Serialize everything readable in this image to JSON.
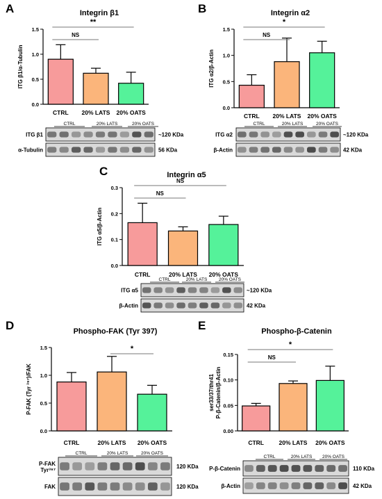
{
  "colors": {
    "ctrl": "#f79b9b",
    "lats": "#fbb57b",
    "oats": "#55f29a",
    "frame": "#000000",
    "blot_bg": "#d9d9d9",
    "blot_band": "#3a3a3a"
  },
  "charts": [
    {
      "panel_letter": "A",
      "title": "Integrin β1",
      "ylabel": "ITG β1/α-Tubulin",
      "yticks": [
        "0.0",
        "0.5",
        "1.0",
        "1.5"
      ],
      "ylim": [
        0,
        1.5
      ],
      "categories": [
        "CTRL",
        "20% LATS",
        "20% OATS"
      ],
      "values": [
        0.9,
        0.62,
        0.42
      ],
      "errors": [
        0.29,
        0.1,
        0.22
      ],
      "sig": [
        {
          "text": "NS",
          "from": 0,
          "to": 1
        },
        {
          "text": "**",
          "from": 0,
          "to": 2
        }
      ],
      "blot": {
        "groups": [
          "CTRL",
          "20% LATS",
          "20% OATS"
        ],
        "rows": [
          {
            "label": "ITG β1",
            "weight": "~120 KDa"
          },
          {
            "label": "α-Tubulin",
            "weight": "56 KDa"
          }
        ]
      }
    },
    {
      "panel_letter": "B",
      "title": "Integrin α2",
      "ylabel": "ITG α2/β-Actin",
      "yticks": [
        "0.0",
        "0.5",
        "1.0",
        "1.5"
      ],
      "ylim": [
        0,
        1.5
      ],
      "categories": [
        "CTRL",
        "20% LATS",
        "20% OATS"
      ],
      "values": [
        0.43,
        0.88,
        1.05
      ],
      "errors": [
        0.2,
        0.45,
        0.22
      ],
      "sig": [
        {
          "text": "NS",
          "from": 0,
          "to": 1
        },
        {
          "text": "*",
          "from": 0,
          "to": 2
        }
      ],
      "blot": {
        "groups": [
          "CTRL",
          "20% LATS",
          "20% OATS"
        ],
        "rows": [
          {
            "label": "ITG α2",
            "weight": "~120 KDa"
          },
          {
            "label": "β-Actin",
            "weight": "42 KDa"
          }
        ]
      }
    },
    {
      "panel_letter": "C",
      "title": "Integrin α5",
      "ylabel": "ITG α5/β-Actin",
      "yticks": [
        "0.0",
        "0.1",
        "0.2",
        "0.3"
      ],
      "ylim": [
        0,
        0.3
      ],
      "categories": [
        "CTRL",
        "20% LATS",
        "20% OATS"
      ],
      "values": [
        0.165,
        0.133,
        0.158
      ],
      "errors": [
        0.075,
        0.016,
        0.032
      ],
      "sig": [
        {
          "text": "NS",
          "from": 0,
          "to": 1
        },
        {
          "text": "NS",
          "from": 0,
          "to": 2
        }
      ],
      "blot": {
        "groups": [
          "CTRL",
          "20% LATS",
          "20% OATS"
        ],
        "rows": [
          {
            "label": "ITG α5",
            "weight": "~120 KDa"
          },
          {
            "label": "β-Actin",
            "weight": "42 KDa"
          }
        ]
      }
    },
    {
      "panel_letter": "D",
      "title": "Phospho-FAK (Tyr 397)",
      "ylabel": "P-FAK (Tyr ³⁹⁷)/FAK",
      "yticks": [
        "0.0",
        "0.5",
        "1.0",
        "1.5"
      ],
      "ylim": [
        0,
        1.5
      ],
      "categories": [
        "CTRL",
        "20% LATS",
        "20% OATS"
      ],
      "values": [
        0.88,
        1.06,
        0.66
      ],
      "errors": [
        0.17,
        0.28,
        0.16
      ],
      "sig": [
        {
          "text": "*",
          "from": 1,
          "to": 2
        }
      ],
      "blot": {
        "groups": [
          "CTRL",
          "20% LATS",
          "20% OATS"
        ],
        "rows": [
          {
            "label": "P-FAK Tyr³⁹⁷",
            "weight": "120 KDa"
          },
          {
            "label": "FAK",
            "weight": "120 KDa"
          }
        ]
      }
    },
    {
      "panel_letter": "E",
      "title": "Phospho-β-Catenin",
      "ylabel": "ser33/37/thr41 P-β-Catenin/β-Actin",
      "yticks": [
        "0.00",
        "0.05",
        "0.10",
        "0.15"
      ],
      "ylim": [
        0,
        0.15
      ],
      "categories": [
        "CTRL",
        "20% LATS",
        "20% OATS"
      ],
      "values": [
        0.049,
        0.093,
        0.099
      ],
      "errors": [
        0.005,
        0.005,
        0.028
      ],
      "sig": [
        {
          "text": "NS",
          "from": 0,
          "to": 1
        },
        {
          "text": "*",
          "from": 0,
          "to": 2
        }
      ],
      "blot": {
        "groups": [
          "CTRL",
          "20% LATS",
          "20% OATS"
        ],
        "rows": [
          {
            "label": "P-β-Catenin",
            "weight": "110 KDa"
          },
          {
            "label": "β-Actin",
            "weight": "42 KDa"
          }
        ]
      }
    }
  ],
  "chart_data": [
    {
      "type": "bar",
      "title": "Integrin β1",
      "ylabel": "ITG β1/α-Tubulin",
      "categories": [
        "CTRL",
        "20% LATS",
        "20% OATS"
      ],
      "values": [
        0.9,
        0.62,
        0.42
      ],
      "errors": [
        0.29,
        0.1,
        0.22
      ],
      "ylim": [
        0,
        1.5
      ]
    },
    {
      "type": "bar",
      "title": "Integrin α2",
      "ylabel": "ITG α2/β-Actin",
      "categories": [
        "CTRL",
        "20% LATS",
        "20% OATS"
      ],
      "values": [
        0.43,
        0.88,
        1.05
      ],
      "errors": [
        0.2,
        0.45,
        0.22
      ],
      "ylim": [
        0,
        1.5
      ]
    },
    {
      "type": "bar",
      "title": "Integrin α5",
      "ylabel": "ITG α5/β-Actin",
      "categories": [
        "CTRL",
        "20% LATS",
        "20% OATS"
      ],
      "values": [
        0.165,
        0.133,
        0.158
      ],
      "errors": [
        0.075,
        0.016,
        0.032
      ],
      "ylim": [
        0,
        0.3
      ]
    },
    {
      "type": "bar",
      "title": "Phospho-FAK (Tyr 397)",
      "ylabel": "P-FAK (Tyr ³⁹⁷)/FAK",
      "categories": [
        "CTRL",
        "20% LATS",
        "20% OATS"
      ],
      "values": [
        0.88,
        1.06,
        0.66
      ],
      "errors": [
        0.17,
        0.28,
        0.16
      ],
      "ylim": [
        0,
        1.5
      ]
    },
    {
      "type": "bar",
      "title": "Phospho-β-Catenin",
      "ylabel": "ser33/37/thr41 P-β-Catenin/β-Actin",
      "categories": [
        "CTRL",
        "20% LATS",
        "20% OATS"
      ],
      "values": [
        0.049,
        0.093,
        0.099
      ],
      "errors": [
        0.005,
        0.005,
        0.028
      ],
      "ylim": [
        0,
        0.15
      ]
    }
  ]
}
